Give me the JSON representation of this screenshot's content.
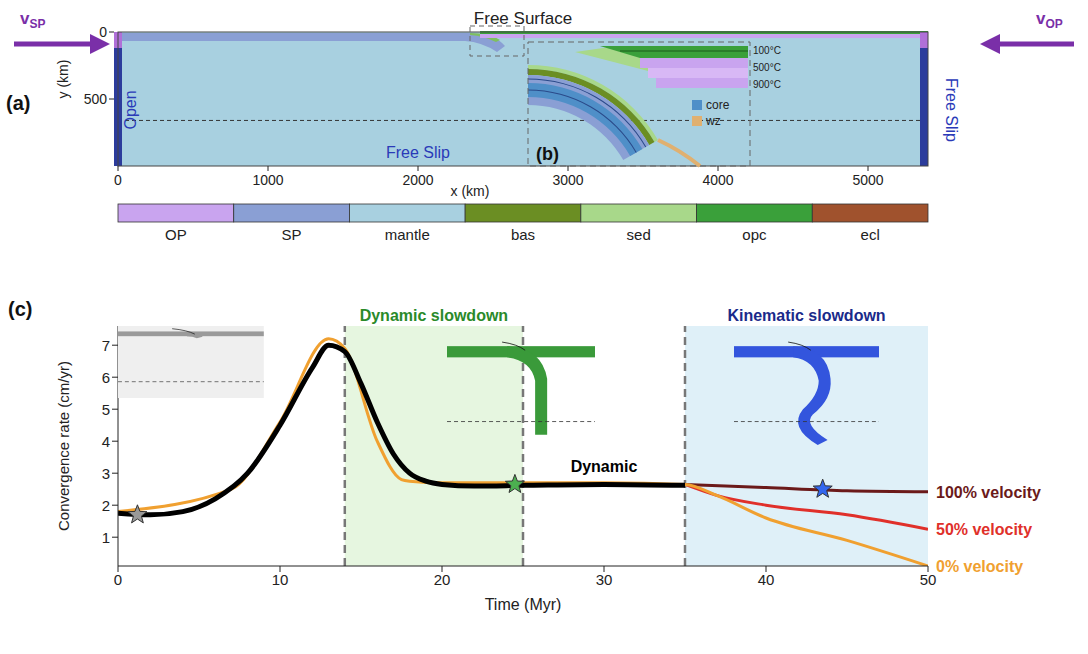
{
  "panel_a": {
    "label": "(a)",
    "inset_label": "(b)",
    "top_boundary": "Free Surface",
    "left_boundary": "Open",
    "right_boundary": "Free Slip",
    "bottom_boundary": "Free Slip",
    "left_velocity": {
      "main": "v",
      "sub": "SP"
    },
    "right_velocity": {
      "main": "v",
      "sub": "OP"
    },
    "xlabel": "x (km)",
    "ylabel": "y (km)",
    "xlim": [
      0,
      5400
    ],
    "xticks": [
      0,
      1000,
      2000,
      3000,
      4000,
      5000
    ],
    "ylim": [
      0,
      1000
    ],
    "yticks": [
      0,
      500
    ],
    "discontinuity_depth": 660,
    "isotherms": [
      "100°C",
      "500°C",
      "900°C"
    ],
    "inset_legend": [
      {
        "name": "core",
        "color": "#4f8fc8"
      },
      {
        "name": "wz",
        "color": "#e0b070"
      }
    ],
    "colorbar": [
      {
        "name": "OP",
        "color": "#c9a4ef"
      },
      {
        "name": "SP",
        "color": "#8a9fd4"
      },
      {
        "name": "mantle",
        "color": "#a8d0e0"
      },
      {
        "name": "bas",
        "color": "#6b8e23"
      },
      {
        "name": "sed",
        "color": "#a8d88a"
      },
      {
        "name": "opc",
        "color": "#3aa03a"
      },
      {
        "name": "ecl",
        "color": "#a0522d"
      }
    ]
  },
  "chart_data": {
    "type": "line",
    "panel_label": "(c)",
    "xlabel": "Time (Myr)",
    "ylabel": "Convergence rate (cm/yr)",
    "xlim": [
      0,
      50
    ],
    "xticks": [
      0,
      10,
      20,
      30,
      40,
      50
    ],
    "ylim": [
      0.1,
      7.6
    ],
    "yticks": [
      1,
      2,
      3,
      4,
      5,
      6,
      7
    ],
    "series": [
      {
        "name": "Dynamic",
        "color": "#000000",
        "x": [
          0,
          2,
          4,
          6,
          8,
          10,
          12,
          13,
          14,
          15,
          16,
          17,
          18,
          19,
          20,
          22,
          25,
          30,
          35
        ],
        "values": [
          1.75,
          1.7,
          1.8,
          2.2,
          3.0,
          4.5,
          6.3,
          7.0,
          6.8,
          5.8,
          4.6,
          3.6,
          3.0,
          2.75,
          2.65,
          2.6,
          2.62,
          2.65,
          2.62
        ]
      },
      {
        "name": "0% velocity",
        "color": "#f0a030",
        "x": [
          0,
          7,
          10,
          13,
          14,
          16,
          17.5,
          18,
          20,
          25,
          30,
          35,
          37,
          40,
          45,
          50
        ],
        "values": [
          1.8,
          2.5,
          4.6,
          7.2,
          6.9,
          4.0,
          2.8,
          2.75,
          2.7,
          2.7,
          2.7,
          2.65,
          2.3,
          1.6,
          0.9,
          0.1
        ]
      },
      {
        "name": "50% velocity",
        "color": "#e0302a",
        "x": [
          35,
          37,
          40,
          45,
          50
        ],
        "values": [
          2.65,
          2.3,
          2.0,
          1.7,
          1.25
        ]
      },
      {
        "name": "100% velocity",
        "color": "#6b1a1a",
        "x": [
          35,
          40,
          45,
          50
        ],
        "values": [
          2.65,
          2.55,
          2.45,
          2.42
        ]
      }
    ],
    "regions": [
      {
        "label": "Dynamic slowdown",
        "x": [
          14,
          25
        ],
        "color": "#e6f6e0",
        "label_color": "#2a8a2a"
      },
      {
        "label": "Kinematic slowdown",
        "x": [
          35,
          50
        ],
        "color": "#dff0f8",
        "label_color": "#1a2a8a"
      }
    ],
    "dashed_lines": [
      14,
      25,
      35
    ],
    "markers": [
      {
        "x": 1.2,
        "y": 1.7,
        "color": "#999999",
        "marker": "star"
      },
      {
        "x": 24.5,
        "y": 2.65,
        "color": "#4caf50",
        "marker": "star"
      },
      {
        "x": 43.5,
        "y": 2.5,
        "color": "#3366ee",
        "marker": "star"
      }
    ]
  }
}
